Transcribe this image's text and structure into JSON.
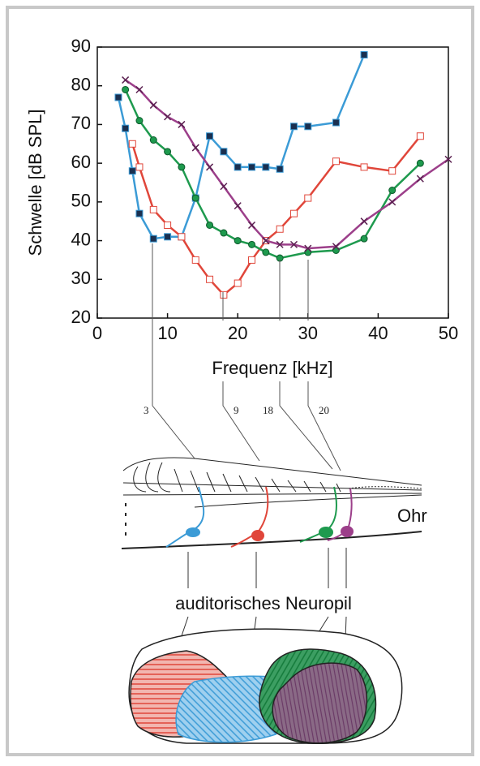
{
  "chart_data": {
    "type": "line",
    "xlabel": "Frequenz [kHz]",
    "ylabel": "Schwelle [dB SPL]",
    "xlim": [
      0,
      50
    ],
    "xticks": [
      0,
      10,
      20,
      30,
      40,
      50
    ],
    "ylim": [
      20,
      90
    ],
    "yticks": [
      20,
      30,
      40,
      50,
      60,
      70,
      80,
      90
    ],
    "grid": false,
    "series": [
      {
        "color": "#3b9bd6",
        "marker": "square-filled",
        "x": [
          3,
          4,
          5,
          6,
          8,
          10,
          12,
          14,
          16,
          18,
          20,
          22,
          24,
          26,
          28,
          30,
          34,
          38
        ],
        "values": [
          77,
          69,
          58,
          47,
          40.5,
          41,
          41,
          51,
          67,
          63,
          59,
          59,
          59,
          58.5,
          69.5,
          69.5,
          70.5,
          88
        ]
      },
      {
        "color": "#e0463a",
        "marker": "square-open",
        "x": [
          5,
          6,
          8,
          10,
          12,
          14,
          16,
          18,
          20,
          22,
          24,
          26,
          28,
          30,
          34,
          38,
          42,
          46
        ],
        "values": [
          65,
          59,
          48,
          44,
          41,
          35,
          30,
          26,
          29,
          35,
          40,
          43,
          47,
          51,
          60.5,
          59,
          58,
          67
        ]
      },
      {
        "color": "#1e9a4e",
        "marker": "circle",
        "x": [
          4,
          6,
          8,
          10,
          12,
          14,
          16,
          18,
          20,
          22,
          24,
          26,
          30,
          34,
          38,
          42,
          46
        ],
        "values": [
          79,
          71,
          66,
          63,
          59,
          51,
          44,
          42,
          40,
          39,
          37,
          35.5,
          37,
          37.5,
          40.5,
          53,
          60
        ]
      },
      {
        "color": "#9c3f8a",
        "marker": "x",
        "x": [
          4,
          6,
          8,
          10,
          12,
          14,
          16,
          18,
          20,
          22,
          24,
          26,
          28,
          30,
          34,
          38,
          42,
          46,
          50
        ],
        "values": [
          81.5,
          79,
          75,
          72,
          70,
          64,
          59,
          54,
          49,
          44,
          40,
          39,
          39,
          38,
          38.5,
          45,
          50,
          56,
          61
        ]
      }
    ]
  },
  "diagram": {
    "frequency_labels": [
      "3",
      "9",
      "18",
      "20"
    ],
    "ear_label": "Ohr",
    "neuropil_label": "auditorisches Neuropil"
  }
}
